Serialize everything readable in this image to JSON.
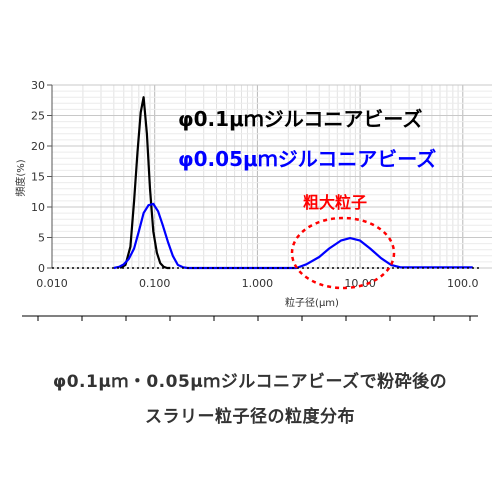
{
  "chart_data": {
    "type": "line",
    "xscale": "log",
    "xlim": [
      0.01,
      150
    ],
    "ylim": [
      0,
      30
    ],
    "xlabel": "粒子径(μm)",
    "ylabel": "頻度(%)",
    "xticks": [
      0.01,
      0.1,
      1,
      10,
      100
    ],
    "xtick_labels": [
      "0.010",
      "0.100",
      "1.000",
      "10.00",
      "100.0"
    ],
    "yticks": [
      0,
      5,
      10,
      15,
      20,
      25,
      30
    ],
    "ytick_labels": [
      "0",
      "5",
      "10",
      "15",
      "20",
      "25",
      "30"
    ],
    "grid": true,
    "series": [
      {
        "name": "φ0.1μｍジルコニアビーズ",
        "color": "#000000",
        "x": [
          0.046,
          0.052,
          0.058,
          0.063,
          0.068,
          0.073,
          0.078,
          0.084,
          0.09,
          0.097,
          0.105,
          0.113,
          0.122,
          0.132,
          0.142
        ],
        "y": [
          0,
          0.5,
          3.5,
          11,
          19,
          25.5,
          28,
          22,
          13,
          6,
          2.5,
          0.8,
          0.2,
          0,
          0
        ]
      },
      {
        "name": "φ0.05μｍジルコニアビーズ",
        "color": "#0000ff",
        "x": [
          0.04,
          0.045,
          0.05,
          0.056,
          0.063,
          0.07,
          0.078,
          0.087,
          0.097,
          0.108,
          0.12,
          0.135,
          0.15,
          0.168,
          0.19,
          0.21,
          2.4,
          3,
          4,
          5,
          6.5,
          8,
          10,
          12.5,
          16,
          20,
          25,
          35,
          60,
          100,
          125
        ],
        "y": [
          0,
          0.2,
          0.6,
          1.5,
          3.2,
          6,
          9,
          10.3,
          10.5,
          9.3,
          7,
          4.2,
          2,
          0.5,
          0.1,
          0,
          0,
          0.6,
          1.8,
          3.2,
          4.5,
          4.9,
          4.5,
          3.2,
          1.6,
          0.5,
          0.1,
          0.1,
          0.1,
          0.1,
          0.1
        ]
      },
      {
        "name": "baseline",
        "color": "#000000",
        "style": "dotted",
        "x": [
          0.01,
          150
        ],
        "y": [
          0,
          0
        ]
      }
    ],
    "annotations": [
      {
        "text": "粗大粒子",
        "color": "#ff0000"
      }
    ]
  },
  "legend": {
    "black": "φ0.1μｍジルコニアビーズ",
    "blue": "φ0.05μｍジルコニアビーズ"
  },
  "annotation": {
    "label": "粗大粒子",
    "color": "#ff0000"
  },
  "caption": {
    "line1": "φ0.1μｍ・0.05μｍジルコニアビーズで粉砕後の",
    "line2": "スラリー粒子径の粒度分布"
  }
}
